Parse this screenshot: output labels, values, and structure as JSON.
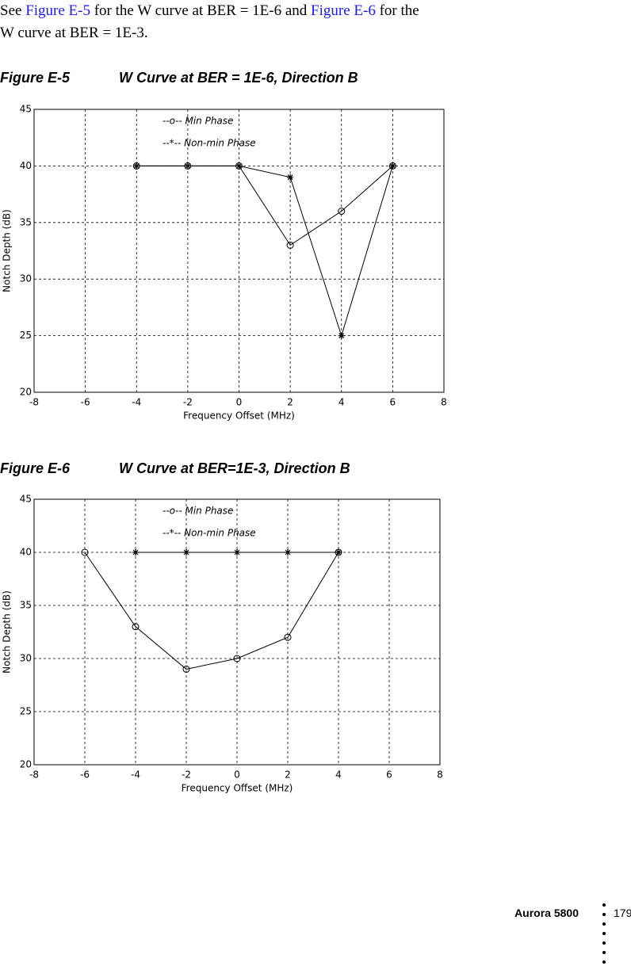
{
  "text": {
    "segments": [
      "See ",
      "Figure E-5",
      " for the W curve at BER = 1E-6 and ",
      "Figure E-6",
      " for the",
      "W curve at BER = 1E-3."
    ]
  },
  "chart_data": [
    {
      "type": "line",
      "figure_label": "Figure E-5",
      "title": "W Curve at BER = 1E-6, Direction B",
      "x": [
        -4,
        -2,
        0,
        2,
        4,
        6
      ],
      "series": [
        {
          "name": "--o-- Min Phase",
          "color": "#000000",
          "marker": "circle",
          "values": [
            40,
            40,
            40,
            33,
            36,
            40
          ]
        },
        {
          "name": "--*-- Non-min Phase",
          "color": "#000000",
          "marker": "star",
          "values": [
            40,
            40,
            40,
            39,
            25,
            40
          ]
        }
      ],
      "xlim": [
        -8,
        8
      ],
      "xticks": [
        -8,
        -6,
        -4,
        -2,
        0,
        2,
        4,
        6,
        8
      ],
      "ylim": [
        20,
        45
      ],
      "yticks": [
        20,
        25,
        30,
        35,
        40,
        45
      ],
      "xlabel": "Frequency Offset (MHz)",
      "ylabel": "Notch Depth (dB)",
      "grid": true
    },
    {
      "type": "line",
      "figure_label": "Figure E-6",
      "title": "W Curve at BER=1E-3, Direction B",
      "x": [
        -6,
        -4,
        -2,
        0,
        2,
        4
      ],
      "series": [
        {
          "name": "--o-- Min Phase",
          "color": "#000000",
          "marker": "circle",
          "values": [
            40,
            33,
            29,
            30,
            32,
            40
          ]
        },
        {
          "name": "--*-- Non-min Phase",
          "color": "#000000",
          "marker": "star",
          "values": [
            null,
            40,
            40,
            40,
            40,
            40
          ]
        }
      ],
      "xlim": [
        -8,
        8
      ],
      "xticks": [
        -8,
        -6,
        -4,
        -2,
        0,
        2,
        4,
        6,
        8
      ],
      "ylim": [
        20,
        45
      ],
      "yticks": [
        20,
        25,
        30,
        35,
        40,
        45
      ],
      "xlabel": "Frequency Offset (MHz)",
      "ylabel": "Notch Depth (dB)",
      "grid": true
    }
  ],
  "footer": {
    "product": "Aurora 5800",
    "page": "179"
  }
}
